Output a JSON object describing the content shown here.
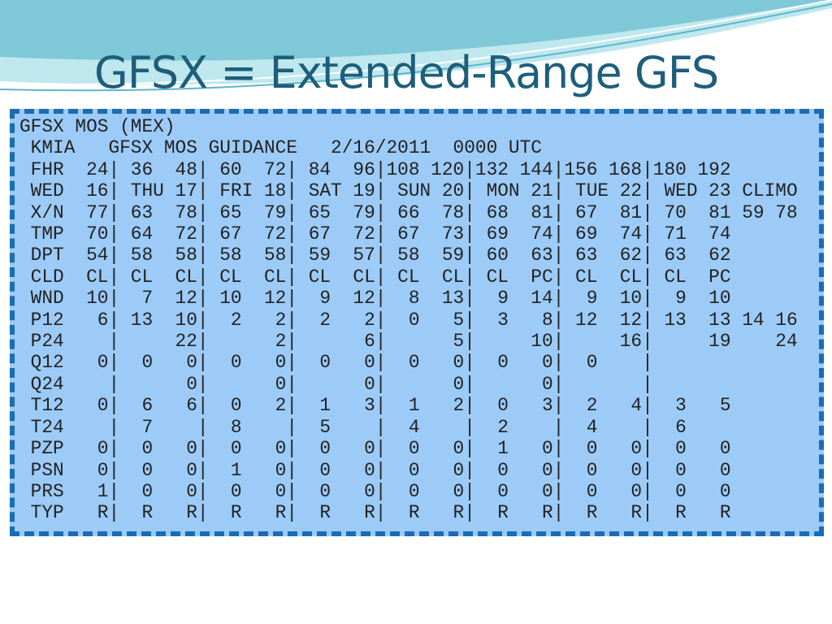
{
  "title": "GFSX = Extended-Range GFS",
  "lines": [
    "GFSX MOS (MEX)",
    " KMIA   GFSX MOS GUIDANCE   2/16/2011  0000 UTC",
    " FHR  24| 36  48| 60  72| 84  96|108 120|132 144|156 168|180 192",
    " WED  16| THU 17| FRI 18| SAT 19| SUN 20| MON 21| TUE 22| WED 23 CLIMO",
    " X/N  77| 63  78| 65  79| 65  79| 66  78| 68  81| 67  81| 70  81 59 78",
    " TMP  70| 64  72| 67  72| 67  72| 67  73| 69  74| 69  74| 71  74",
    " DPT  54| 58  58| 58  58| 59  57| 58  59| 60  63| 63  62| 63  62",
    " CLD  CL| CL  CL| CL  CL| CL  CL| CL  CL| CL  PC| CL  CL| CL  PC",
    " WND  10|  7  12| 10  12|  9  12|  8  13|  9  14|  9  10|  9  10",
    " P12   6| 13  10|  2   2|  2   2|  0   5|  3   8| 12  12| 13  13 14 16",
    " P24    |     22|      2|      6|      5|     10|     16|     19    24",
    " Q12   0|  0   0|  0   0|  0   0|  0   0|  0   0|  0    |",
    " Q24    |      0|      0|      0|      0|      0|       |",
    " T12   0|  6   6|  0   2|  1   3|  1   2|  0   3|  2   4|  3   5",
    " T24    |  7    |  8    |  5    |  4    |  2    |  4    |  6",
    " PZP   0|  0   0|  0   0|  0   0|  0   0|  1   0|  0   0|  0   0",
    " PSN   0|  0   0|  1   0|  0   0|  0   0|  0   0|  0   0|  0   0",
    " PRS   1|  0   0|  0   0|  0   0|  0   0|  0   0|  0   0|  0   0",
    " TYP   R|  R   R|  R   R|  R   R|  R   R|  R   R|  R   R|  R   R"
  ]
}
